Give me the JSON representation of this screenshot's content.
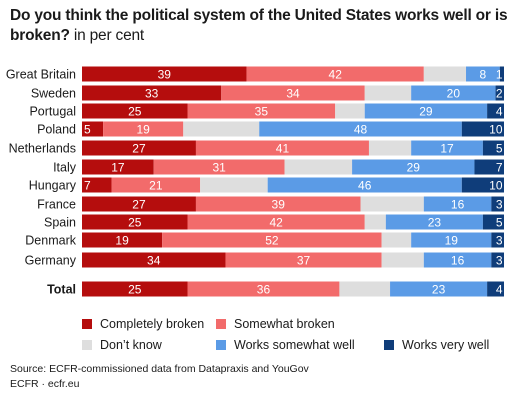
{
  "title": "Do you think the political system of the United States works well or is broken?",
  "unit": "in per cent",
  "colors": {
    "completely_broken": "#b50d0d",
    "somewhat_broken": "#f26b6b",
    "dont_know": "#dedede",
    "works_somewhat_well": "#5b9be6",
    "works_very_well": "#0f3d7a"
  },
  "legend": [
    {
      "key": "completely_broken",
      "label": "Completely broken"
    },
    {
      "key": "somewhat_broken",
      "label": "Somewhat broken"
    },
    {
      "key": "dont_know",
      "label": "Don’t know"
    },
    {
      "key": "works_somewhat_well",
      "label": "Works somewhat well"
    },
    {
      "key": "works_very_well",
      "label": "Works very well"
    }
  ],
  "source_line1": "Source: ECFR-commissioned data from Datapraxis and YouGov",
  "source_line2": "ECFR · ecfr.eu",
  "chart_data": {
    "type": "bar",
    "orientation": "horizontal",
    "stacked": true,
    "categories": [
      "Great Britain",
      "Sweden",
      "Portugal",
      "Poland",
      "Netherlands",
      "Italy",
      "Hungary",
      "France",
      "Spain",
      "Denmark",
      "Germany",
      "Total"
    ],
    "series": [
      {
        "name": "Completely broken",
        "values": [
          39,
          33,
          25,
          5,
          27,
          17,
          7,
          27,
          25,
          19,
          34,
          25
        ]
      },
      {
        "name": "Somewhat broken",
        "values": [
          42,
          34,
          35,
          19,
          41,
          31,
          21,
          39,
          42,
          52,
          37,
          36
        ]
      },
      {
        "name": "Don’t know",
        "values": [
          10,
          11,
          7,
          18,
          10,
          16,
          16,
          15,
          5,
          7,
          10,
          12
        ]
      },
      {
        "name": "Works somewhat well",
        "values": [
          8,
          20,
          29,
          48,
          17,
          29,
          46,
          16,
          23,
          19,
          16,
          23
        ]
      },
      {
        "name": "Works very well",
        "values": [
          1,
          2,
          4,
          10,
          5,
          7,
          10,
          3,
          5,
          3,
          3,
          4
        ]
      }
    ],
    "value_labels": [
      [
        "39",
        "42",
        "",
        "8",
        "1"
      ],
      [
        "33",
        "34",
        "",
        "20",
        "2"
      ],
      [
        "25",
        "35",
        "",
        "29",
        "4"
      ],
      [
        "5",
        "19",
        "",
        "48",
        "10"
      ],
      [
        "27",
        "41",
        "",
        "17",
        "5"
      ],
      [
        "17",
        "31",
        "",
        "29",
        "7"
      ],
      [
        "7",
        "21",
        "",
        "46",
        "10"
      ],
      [
        "27",
        "39",
        "",
        "16",
        "3"
      ],
      [
        "25",
        "42",
        "",
        "23",
        "5"
      ],
      [
        "19",
        "52",
        "",
        "19",
        "3"
      ],
      [
        "34",
        "37",
        "",
        "16",
        "3"
      ],
      [
        "25",
        "36",
        "",
        "23",
        "4"
      ]
    ],
    "xlim": [
      0,
      100
    ]
  }
}
